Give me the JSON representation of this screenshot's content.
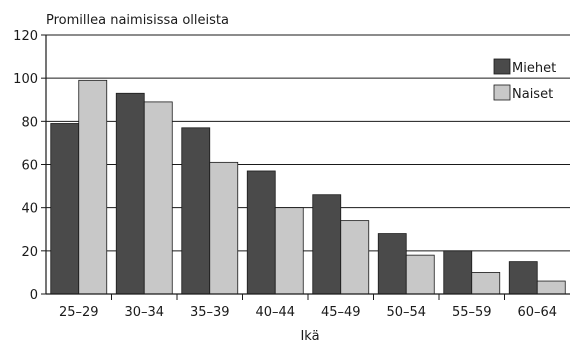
{
  "chart_data": {
    "type": "bar",
    "title": "Promillea naimisissa olleista",
    "xlabel": "Ikä",
    "ylabel": "",
    "ylim": [
      0,
      120
    ],
    "yticks": [
      0,
      20,
      40,
      60,
      80,
      100,
      120
    ],
    "categories": [
      "25–29",
      "30–34",
      "35–39",
      "40–44",
      "45–49",
      "50–54",
      "55–59",
      "60–64"
    ],
    "series": [
      {
        "name": "Miehet",
        "color": "#4a4a4a",
        "values": [
          79,
          93,
          77,
          57,
          46,
          28,
          20,
          15
        ]
      },
      {
        "name": "Naiset",
        "color": "#c8c8c8",
        "values": [
          99,
          89,
          61,
          40,
          34,
          18,
          10,
          6
        ]
      }
    ],
    "grid": true,
    "legend_position": "top-right"
  }
}
